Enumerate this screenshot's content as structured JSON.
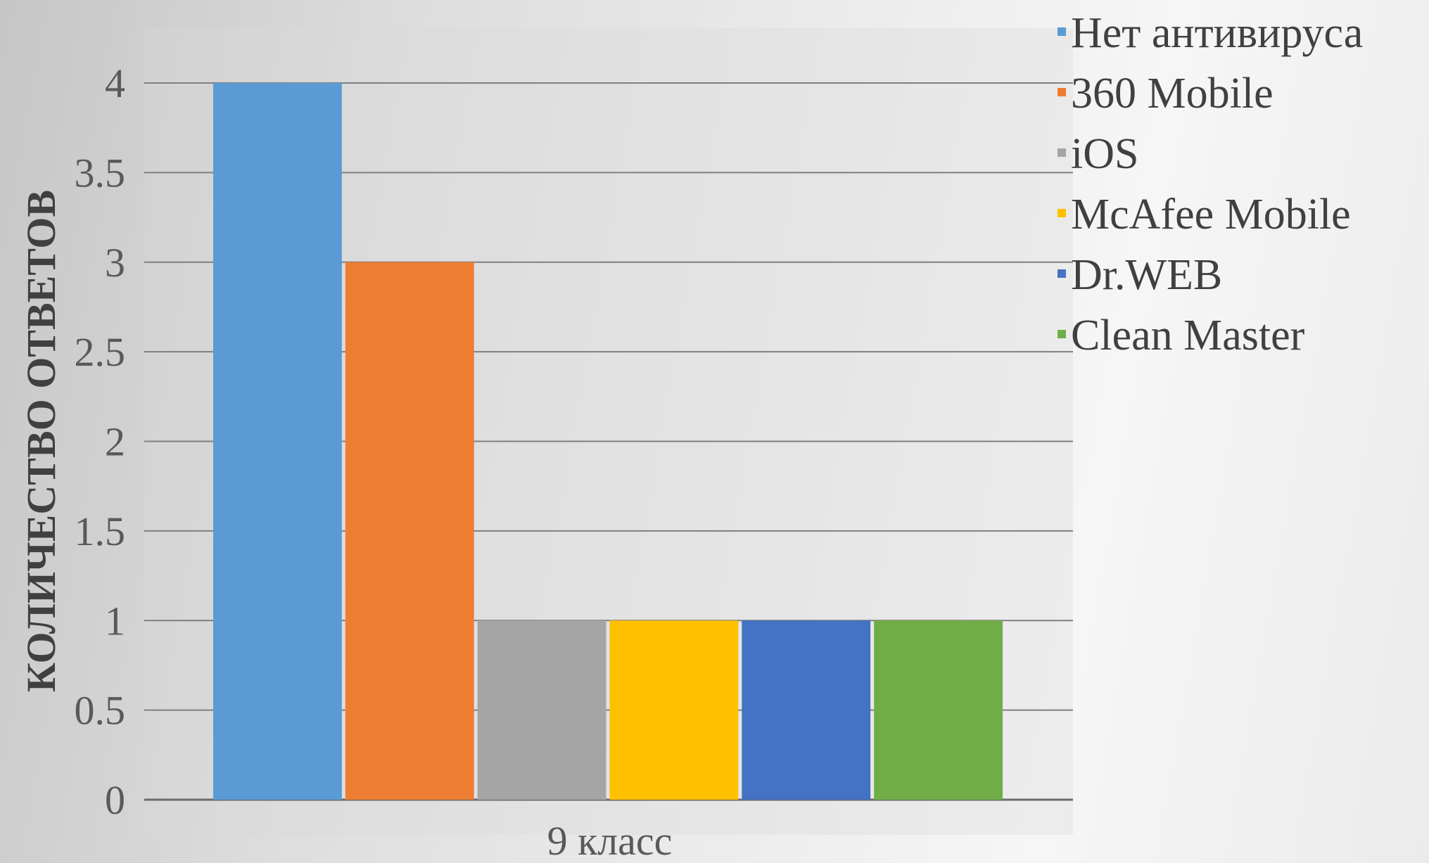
{
  "chart_data": {
    "type": "bar",
    "categories": [
      "9 класс"
    ],
    "series": [
      {
        "name": "Нет антивируса",
        "values": [
          4
        ],
        "color": "#5b9bd5"
      },
      {
        "name": "360 Mobile",
        "values": [
          3
        ],
        "color": "#ed7d31"
      },
      {
        "name": "iOS",
        "values": [
          1
        ],
        "color": "#a5a5a5"
      },
      {
        "name": "McAfee Mobile",
        "values": [
          1
        ],
        "color": "#ffc000"
      },
      {
        "name": "Dr.WEB",
        "values": [
          1
        ],
        "color": "#4472c4"
      },
      {
        "name": "Clean Master",
        "values": [
          1
        ],
        "color": "#70ad47"
      }
    ],
    "title": "",
    "xlabel": "",
    "ylabel": "КОЛИЧЕСТВО ОТВЕТОВ",
    "ylim": [
      0,
      4
    ],
    "yticks": [
      "0",
      "0.5",
      "1",
      "1.5",
      "2",
      "2.5",
      "3",
      "3.5",
      "4"
    ],
    "grid": true,
    "legend": "top-right"
  }
}
